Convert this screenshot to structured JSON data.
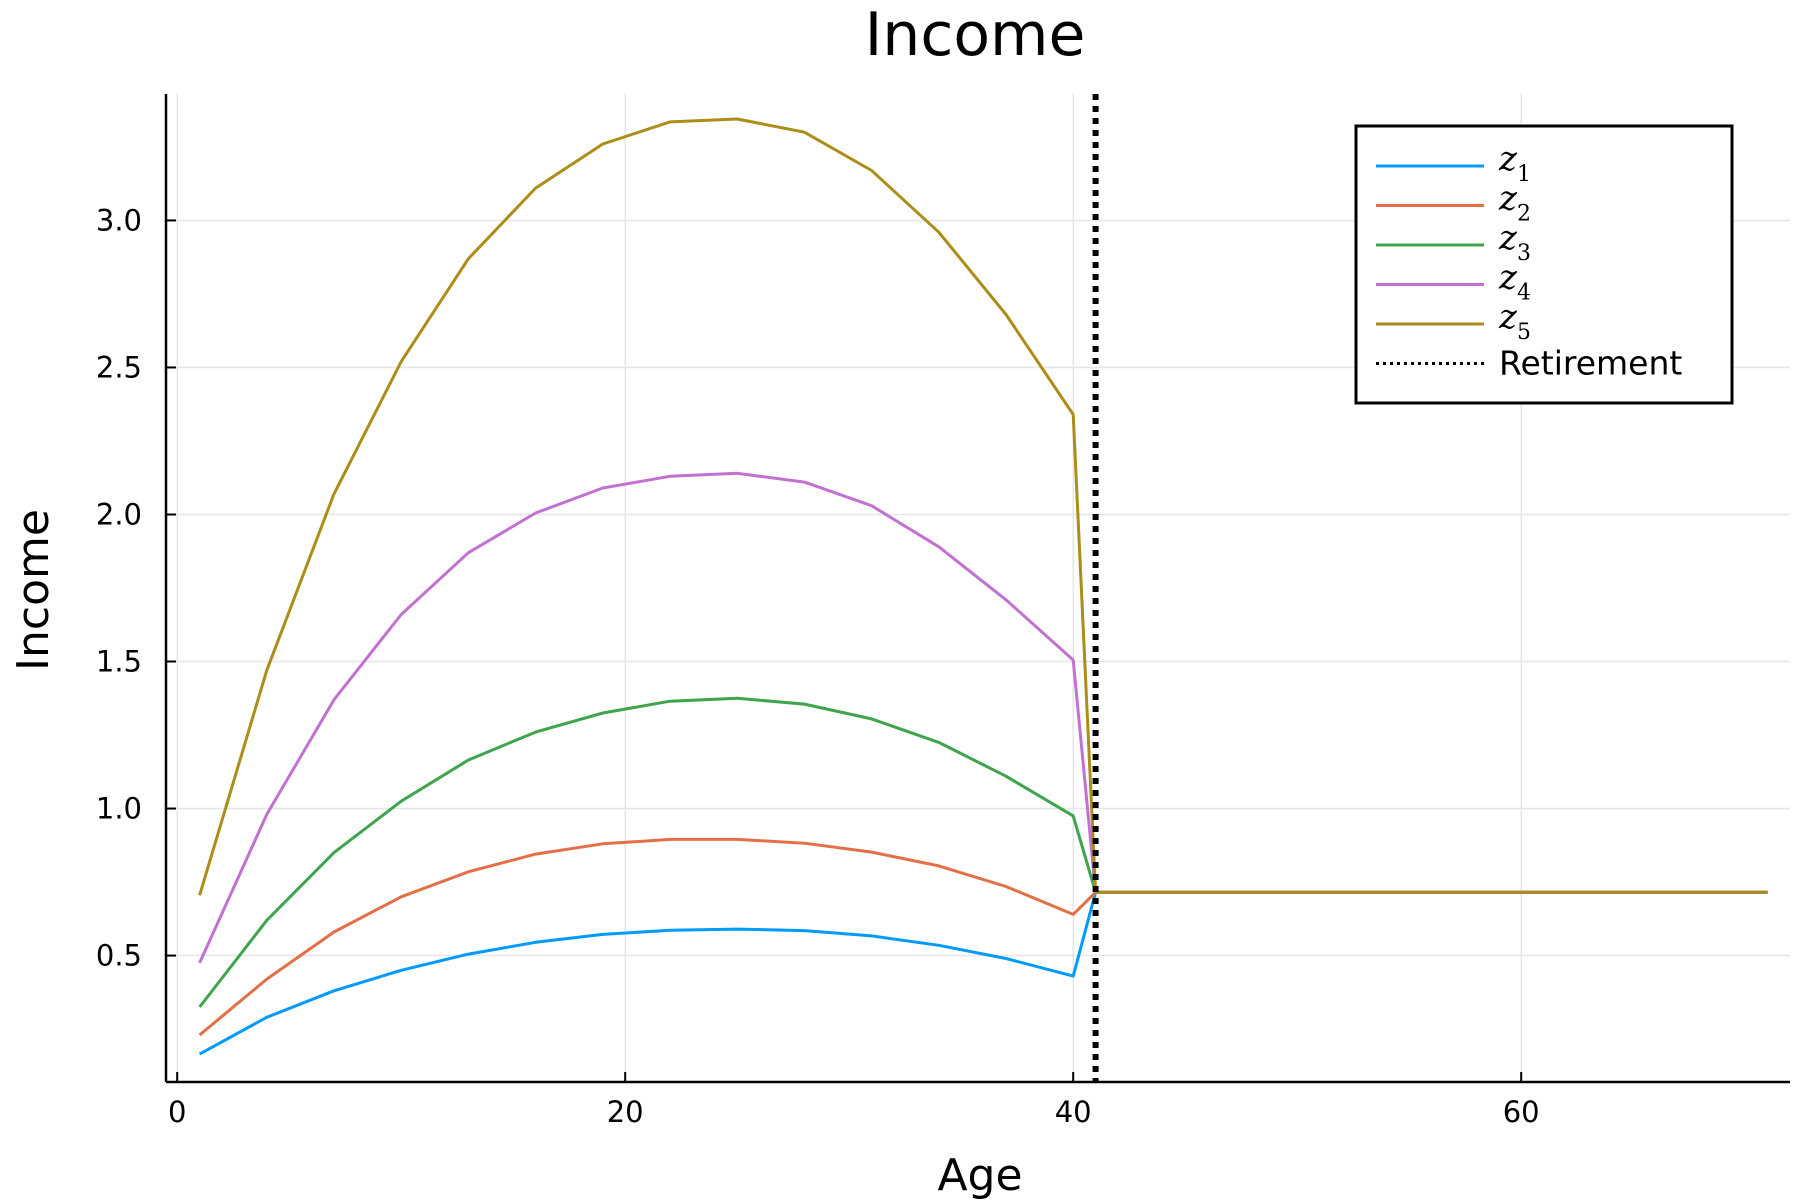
{
  "chart_data": {
    "type": "line",
    "title": "Income",
    "xlabel": "Age",
    "ylabel": "Income",
    "xlim": [
      -0.5,
      72
    ],
    "ylim": [
      0.07,
      3.43
    ],
    "xticks": [
      0,
      20,
      40,
      60
    ],
    "xtick_labels": [
      "0",
      "20",
      "40",
      "60"
    ],
    "yticks": [
      0.5,
      1.0,
      1.5,
      2.0,
      2.5,
      3.0
    ],
    "ytick_labels": [
      "0.5",
      "1.0",
      "1.5",
      "2.0",
      "2.5",
      "3.0"
    ],
    "grid": true,
    "legend_position": "top-right",
    "x": [
      1,
      4,
      7,
      10,
      13,
      16,
      19,
      22,
      25,
      28,
      31,
      34,
      37,
      40,
      41,
      71
    ],
    "series": [
      {
        "name": "z",
        "subscript": "1",
        "color": "#009AFA",
        "values": [
          0.165,
          0.29,
          0.38,
          0.45,
          0.505,
          0.545,
          0.572,
          0.586,
          0.59,
          0.585,
          0.567,
          0.535,
          0.49,
          0.43,
          0.715,
          0.715
        ]
      },
      {
        "name": "z",
        "subscript": "2",
        "color": "#E36F47",
        "values": [
          0.23,
          0.42,
          0.58,
          0.7,
          0.785,
          0.845,
          0.88,
          0.895,
          0.895,
          0.882,
          0.852,
          0.805,
          0.735,
          0.64,
          0.715,
          0.715
        ]
      },
      {
        "name": "z",
        "subscript": "3",
        "color": "#3EA44E",
        "values": [
          0.325,
          0.62,
          0.85,
          1.025,
          1.165,
          1.26,
          1.325,
          1.365,
          1.375,
          1.355,
          1.305,
          1.225,
          1.11,
          0.975,
          0.715,
          0.715
        ]
      },
      {
        "name": "z",
        "subscript": "4",
        "color": "#C271D2",
        "values": [
          0.475,
          0.98,
          1.37,
          1.66,
          1.87,
          2.005,
          2.09,
          2.13,
          2.14,
          2.11,
          2.03,
          1.89,
          1.71,
          1.505,
          0.715,
          0.715
        ]
      },
      {
        "name": "z",
        "subscript": "5",
        "color": "#AC8D18",
        "values": [
          0.705,
          1.47,
          2.07,
          2.52,
          2.87,
          3.11,
          3.26,
          3.335,
          3.345,
          3.3,
          3.17,
          2.96,
          2.68,
          2.34,
          0.715,
          0.715
        ]
      }
    ],
    "vline": {
      "name": "Retirement",
      "x": 41,
      "color": "#000000",
      "style": "dotted"
    }
  }
}
